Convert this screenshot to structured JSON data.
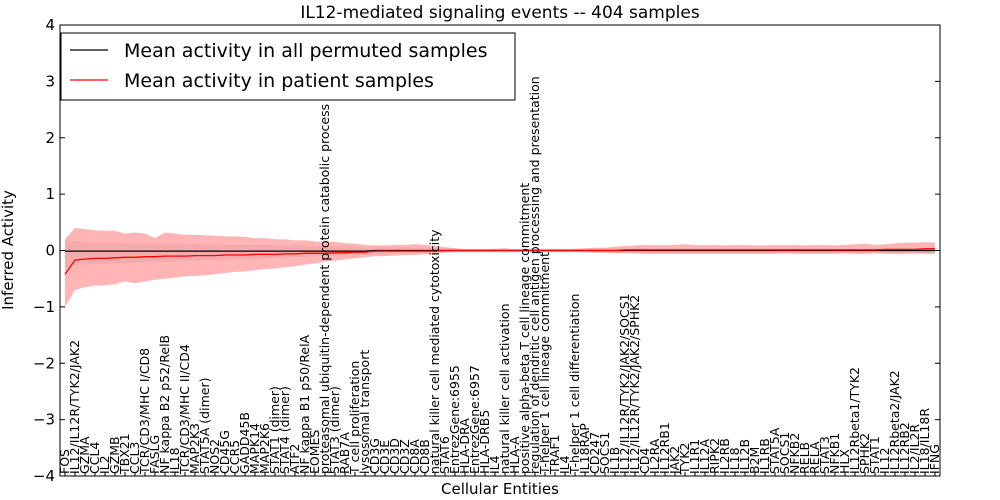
{
  "chart_data": {
    "type": "line",
    "title": "IL12-mediated signaling events -- 404 samples",
    "xlabel": "Cellular Entities",
    "ylabel": "Inferred Activity",
    "ylim": [
      -4,
      4
    ],
    "yticks": [
      "−4",
      "−3",
      "−2",
      "−1",
      "0",
      "1",
      "2",
      "3",
      "4"
    ],
    "legend": {
      "placement": "top-left",
      "entries": [
        {
          "label": "Mean activity in all permuted samples",
          "color": "#000000"
        },
        {
          "label": "Mean activity in patient samples",
          "color": "#ff0000"
        }
      ]
    },
    "colors": {
      "patient": "#ff0000",
      "patient_band": "#ff9c9c",
      "permuted_band": "#c8c8c8",
      "permuted": "#000000"
    },
    "categories": [
      "FOS",
      "IL12/IL12R/TYK2/JAK2",
      "GZMA",
      "CCL4",
      "IL2",
      "GZMB",
      "TBX21",
      "CCL3",
      "TCR/CD3/MHC I/CD8",
      "FASLG",
      "NF kappa B2 p52/RelB",
      "IL18",
      "TCR/CD3/MHC II/CD4",
      "MAP2K3",
      "STAT5A (dimer)",
      "NOS2",
      "CD45G",
      "CCR5",
      "GADD45B",
      "MAPK14",
      "MAP2K6",
      "STAT1 (dimer)",
      "STAT4 (dimer)",
      "ATF2",
      "NF kappa B1 p50/RelA",
      "EOMES",
      "proteasomal ubiquitin-dependent protein catabolic process",
      "STAT3 (dimer)",
      "RAB7A",
      "T cell proliferation",
      "lysosomal transport",
      "CD3G",
      "CD3E",
      "CD3D",
      "CD3Z",
      "CD8A",
      "CD8B",
      "natural killer cell mediated cytotoxicity",
      "STAT6",
      "EntrezGene:6955",
      "HLA-DRA",
      "EntrezGene:6957",
      "HLA-DRB5",
      "IL4",
      "natural killer cell activation",
      "HLA-A",
      "positive alpha-beta T cell lineage commitment",
      "regulation of dendritic cell antigen processing and presentation",
      "T-helper 1 cell lineage commitment",
      "TRAF1",
      "IL4",
      "T-helper 1 cell differentiation",
      "IL18RAP",
      "CD247",
      "SOCS1",
      "IL1B",
      "IL12/IL12R/TYK2/JAK2/SOCS1",
      "IL12/IL12R/TYK2/JAK2/SPHK2",
      "CD4",
      "IL2RA",
      "IL12RB1",
      "JAK2",
      "TYK2",
      "IL1R1",
      "IL12A",
      "RIPK2",
      "IL2RB",
      "IL18",
      "IL12B",
      "B2M",
      "IL1RB",
      "STAT5A",
      "SOCS1",
      "NFKB2",
      "RELB",
      "RELA",
      "STAT3",
      "NFKB1",
      "HLX",
      "IL12Rbeta1/TYK2",
      "SPHK2",
      "STAT1",
      "IL12",
      "IL12Rbeta2/JAK2",
      "IL12RB2",
      "IL2/IL2R",
      "IL18/IL18R",
      "IFNG"
    ],
    "series": [
      {
        "name": "Mean activity in patient samples",
        "values": [
          -0.42,
          -0.17,
          -0.15,
          -0.14,
          -0.14,
          -0.13,
          -0.12,
          -0.12,
          -0.11,
          -0.11,
          -0.1,
          -0.1,
          -0.1,
          -0.09,
          -0.09,
          -0.09,
          -0.08,
          -0.08,
          -0.08,
          -0.07,
          -0.07,
          -0.07,
          -0.06,
          -0.06,
          -0.05,
          -0.05,
          -0.05,
          -0.04,
          -0.04,
          -0.03,
          -0.03,
          -0.01,
          -0.01,
          -0.01,
          -0.01,
          -0.01,
          -0.01,
          -0.01,
          0.0,
          0.0,
          0.0,
          0.0,
          0.0,
          0.0,
          0.0,
          0.0,
          0.0,
          0.0,
          0.0,
          0.0,
          0.0,
          0.0,
          0.0,
          0.0,
          0.0,
          0.0,
          0.01,
          0.01,
          0.01,
          0.01,
          0.01,
          0.01,
          0.01,
          0.01,
          0.01,
          0.01,
          0.01,
          0.01,
          0.01,
          0.01,
          0.01,
          0.01,
          0.01,
          0.01,
          0.01,
          0.01,
          0.01,
          0.01,
          0.01,
          0.01,
          0.01,
          0.01,
          0.02,
          0.02,
          0.02,
          0.02,
          0.03,
          0.03
        ]
      },
      {
        "name": "Mean activity in all permuted samples",
        "values": [
          -0.01,
          -0.01,
          -0.01,
          -0.01,
          -0.01,
          -0.01,
          -0.01,
          -0.01,
          -0.01,
          -0.01,
          -0.01,
          -0.01,
          -0.01,
          -0.01,
          -0.01,
          -0.01,
          -0.01,
          -0.01,
          -0.01,
          -0.01,
          -0.01,
          -0.01,
          -0.01,
          -0.01,
          -0.01,
          -0.01,
          -0.01,
          -0.01,
          -0.01,
          -0.01,
          -0.01,
          0.0,
          0.0,
          0.0,
          0.0,
          0.0,
          0.0,
          0.0,
          0.0,
          0.0,
          0.0,
          0.0,
          0.0,
          0.0,
          0.0,
          0.0,
          0.0,
          0.0,
          0.0,
          0.0,
          0.0,
          0.0,
          0.0,
          0.0,
          0.0,
          0.0,
          0.0,
          0.0,
          0.0,
          0.0,
          0.0,
          0.0,
          0.0,
          0.0,
          0.0,
          0.0,
          0.0,
          0.0,
          0.0,
          0.0,
          0.0,
          0.0,
          0.0,
          0.0,
          0.0,
          0.0,
          0.0,
          0.0,
          0.0,
          0.0,
          0.0,
          0.0,
          0.0,
          0.0,
          0.0,
          0.0,
          0.0,
          0.0
        ]
      }
    ],
    "bands": {
      "patient_upper": [
        0.2,
        0.4,
        0.38,
        0.36,
        0.35,
        0.35,
        0.3,
        0.32,
        0.3,
        0.22,
        0.32,
        0.3,
        0.28,
        0.28,
        0.27,
        0.26,
        0.25,
        0.25,
        0.24,
        0.22,
        0.22,
        0.2,
        0.2,
        0.18,
        0.18,
        0.16,
        0.16,
        0.15,
        0.13,
        0.12,
        0.1,
        0.09,
        0.09,
        0.1,
        0.1,
        0.11,
        0.1,
        0.08,
        0.06,
        0.04,
        0.02,
        0.02,
        0.02,
        0.03,
        0.04,
        0.02,
        0.02,
        0.02,
        0.02,
        0.03,
        0.02,
        0.03,
        0.04,
        0.05,
        0.05,
        0.07,
        0.08,
        0.09,
        0.1,
        0.1,
        0.09,
        0.1,
        0.11,
        0.1,
        0.09,
        0.1,
        0.09,
        0.1,
        0.1,
        0.09,
        0.09,
        0.1,
        0.09,
        0.1,
        0.09,
        0.1,
        0.1,
        0.09,
        0.1,
        0.11,
        0.12,
        0.1,
        0.11,
        0.13,
        0.14,
        0.14,
        0.15,
        0.14
      ],
      "patient_lower": [
        -1.0,
        -0.7,
        -0.65,
        -0.62,
        -0.62,
        -0.6,
        -0.55,
        -0.58,
        -0.55,
        -0.52,
        -0.5,
        -0.48,
        -0.46,
        -0.45,
        -0.44,
        -0.42,
        -0.4,
        -0.38,
        -0.37,
        -0.35,
        -0.33,
        -0.32,
        -0.3,
        -0.28,
        -0.25,
        -0.23,
        -0.2,
        -0.18,
        -0.16,
        -0.14,
        -0.12,
        -0.1,
        -0.1,
        -0.09,
        -0.08,
        -0.08,
        -0.07,
        -0.06,
        -0.04,
        -0.03,
        -0.02,
        -0.02,
        -0.02,
        -0.02,
        -0.02,
        -0.02,
        -0.02,
        -0.02,
        -0.02,
        -0.02,
        -0.02,
        -0.02,
        -0.03,
        -0.03,
        -0.04,
        -0.05,
        -0.05,
        -0.05,
        -0.06,
        -0.06,
        -0.06,
        -0.06,
        -0.06,
        -0.06,
        -0.06,
        -0.06,
        -0.06,
        -0.06,
        -0.06,
        -0.06,
        -0.06,
        -0.06,
        -0.05,
        -0.06,
        -0.06,
        -0.06,
        -0.06,
        -0.06,
        -0.05,
        -0.06,
        -0.06,
        -0.05,
        -0.06,
        -0.06,
        -0.06,
        -0.05,
        -0.06,
        -0.06
      ],
      "permuted_upper": [
        0.18,
        0.16,
        0.15,
        0.14,
        0.14,
        0.14,
        0.13,
        0.13,
        0.13,
        0.12,
        0.12,
        0.12,
        0.12,
        0.11,
        0.11,
        0.11,
        0.1,
        0.1,
        0.1,
        0.1,
        0.1,
        0.09,
        0.09,
        0.09,
        0.08,
        0.08,
        0.08,
        0.07,
        0.07,
        0.07,
        0.06,
        0.06,
        0.06,
        0.06,
        0.06,
        0.05,
        0.05,
        0.05,
        0.04,
        0.04,
        0.03,
        0.03,
        0.03,
        0.03,
        0.03,
        0.03,
        0.03,
        0.03,
        0.03,
        0.03,
        0.03,
        0.03,
        0.03,
        0.04,
        0.04,
        0.04,
        0.04,
        0.04,
        0.04,
        0.04,
        0.04,
        0.04,
        0.04,
        0.04,
        0.04,
        0.04,
        0.04,
        0.04,
        0.04,
        0.04,
        0.04,
        0.04,
        0.04,
        0.04,
        0.04,
        0.04,
        0.04,
        0.04,
        0.04,
        0.04,
        0.04,
        0.04,
        0.04,
        0.04,
        0.04,
        0.04,
        0.04,
        0.04
      ],
      "permuted_lower": [
        -0.3,
        -0.26,
        -0.25,
        -0.24,
        -0.24,
        -0.23,
        -0.22,
        -0.22,
        -0.21,
        -0.2,
        -0.2,
        -0.19,
        -0.18,
        -0.18,
        -0.17,
        -0.17,
        -0.16,
        -0.16,
        -0.15,
        -0.15,
        -0.14,
        -0.13,
        -0.13,
        -0.12,
        -0.11,
        -0.1,
        -0.1,
        -0.09,
        -0.08,
        -0.07,
        -0.07,
        -0.06,
        -0.06,
        -0.05,
        -0.05,
        -0.05,
        -0.04,
        -0.04,
        -0.03,
        -0.03,
        -0.03,
        -0.03,
        -0.03,
        -0.03,
        -0.04,
        -0.03,
        -0.03,
        -0.03,
        -0.03,
        -0.03,
        -0.03,
        -0.03,
        -0.04,
        -0.04,
        -0.04,
        -0.04,
        -0.05,
        -0.05,
        -0.05,
        -0.05,
        -0.05,
        -0.05,
        -0.05,
        -0.05,
        -0.05,
        -0.05,
        -0.05,
        -0.05,
        -0.05,
        -0.05,
        -0.05,
        -0.05,
        -0.05,
        -0.05,
        -0.05,
        -0.05,
        -0.05,
        -0.05,
        -0.05,
        -0.05,
        -0.05,
        -0.05,
        -0.05,
        -0.05,
        -0.05,
        -0.05,
        -0.05,
        -0.05
      ]
    }
  }
}
